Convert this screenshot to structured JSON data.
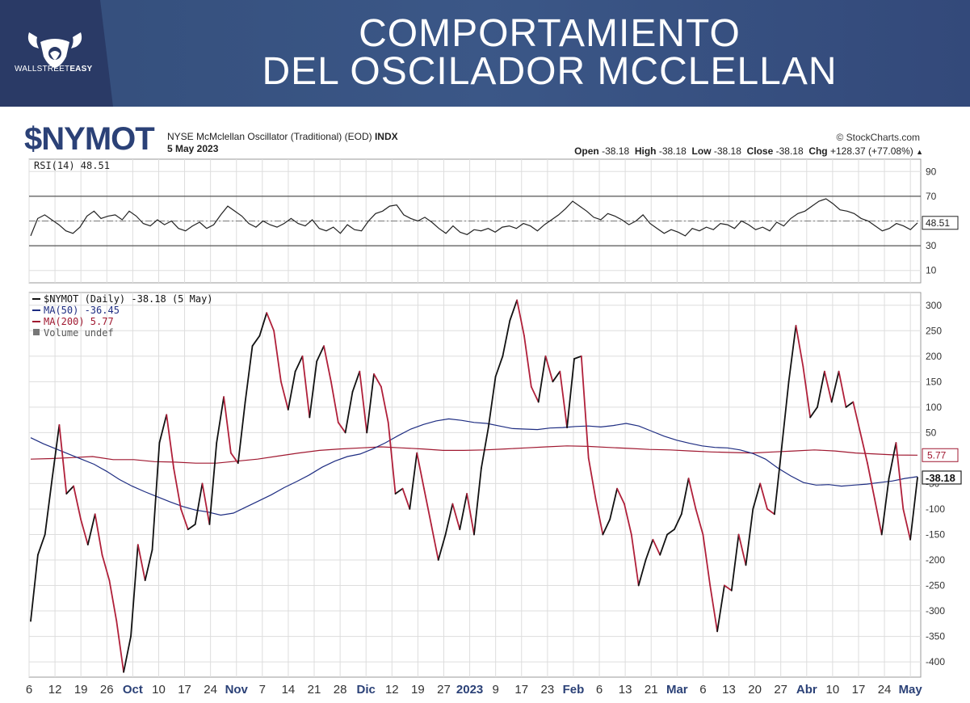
{
  "banner": {
    "logo_text_1": "WALLSTREET",
    "logo_text_2": "EASY",
    "title_line1": "COMPORTAMIENTO",
    "title_line2": "DEL OSCILADOR MCCLELLAN"
  },
  "header": {
    "ticker": "$NYMOT",
    "description": "NYSE McMclellan Oscillator (Traditional) (EOD)",
    "exchange": "INDX",
    "date": "5 May 2023",
    "source": "© StockCharts.com",
    "ohlc": {
      "open_label": "Open",
      "open": "-38.18",
      "high_label": "High",
      "high": "-38.18",
      "low_label": "Low",
      "low": "-38.18",
      "close_label": "Close",
      "close": "-38.18",
      "chg_label": "Chg",
      "chg": "+128.37 (+77.08%)"
    }
  },
  "colors": {
    "price": "#111111",
    "down": "#b0203a",
    "ma50": "#1e2d82",
    "ma200": "#a01830",
    "grid": "#dddddd"
  },
  "chart_data": [
    {
      "type": "line",
      "title": "RSI(14) 48.51",
      "ylim": [
        0,
        100
      ],
      "y_ticks": [
        10,
        30,
        50,
        70,
        90
      ],
      "levels": [
        30,
        70
      ],
      "last_label": "48.51",
      "series": [
        {
          "name": "RSI(14)",
          "values": [
            38,
            52,
            55,
            51,
            47,
            42,
            40,
            45,
            54,
            58,
            52,
            54,
            55,
            51,
            58,
            54,
            48,
            46,
            51,
            47,
            50,
            44,
            42,
            46,
            49,
            44,
            47,
            55,
            62,
            58,
            54,
            48,
            45,
            50,
            47,
            45,
            48,
            52,
            48,
            46,
            51,
            44,
            42,
            45,
            40,
            47,
            43,
            42,
            50,
            56,
            58,
            62,
            63,
            55,
            52,
            50,
            53,
            49,
            44,
            40,
            46,
            41,
            39,
            43,
            42,
            44,
            41,
            45,
            46,
            44,
            48,
            46,
            42,
            47,
            51,
            55,
            60,
            66,
            62,
            58,
            53,
            51,
            56,
            54,
            51,
            47,
            50,
            55,
            48,
            44,
            40,
            43,
            41,
            38,
            44,
            42,
            45,
            43,
            48,
            47,
            44,
            50,
            47,
            43,
            45,
            42,
            49,
            46,
            52,
            56,
            58,
            62,
            66,
            68,
            64,
            59,
            58,
            56,
            52,
            50,
            46,
            42,
            44,
            48,
            46,
            43,
            48.51
          ]
        }
      ]
    },
    {
      "type": "line",
      "legend": [
        {
          "name": "$NYMOT (Daily) -38.18 (5 May)"
        },
        {
          "name": "MA(50) -36.45"
        },
        {
          "name": "MA(200) 5.77"
        },
        {
          "name": "Volume undef"
        }
      ],
      "ylim": [
        -430,
        325
      ],
      "y_ticks": [
        300,
        250,
        200,
        150,
        100,
        50,
        -50,
        -100,
        -150,
        -200,
        -250,
        -300,
        -350,
        -400
      ],
      "x_tick_labels": [
        "6",
        "12",
        "19",
        "26",
        "Oct",
        "10",
        "17",
        "24",
        "Nov",
        "7",
        "14",
        "21",
        "28",
        "Dic",
        "12",
        "19",
        "27",
        "2023",
        "9",
        "17",
        "23",
        "Feb",
        "6",
        "13",
        "21",
        "Mar",
        "6",
        "13",
        "20",
        "27",
        "Abr",
        "10",
        "17",
        "24",
        "May"
      ],
      "last_labels": {
        "ma200": "5.77",
        "price": "-38.18"
      },
      "series": [
        {
          "name": "$NYMOT",
          "values": [
            -320,
            -190,
            -150,
            -40,
            65,
            -70,
            -55,
            -120,
            -170,
            -110,
            -190,
            -240,
            -320,
            -420,
            -350,
            -170,
            -240,
            -180,
            30,
            85,
            -20,
            -100,
            -140,
            -130,
            -50,
            -130,
            30,
            120,
            10,
            -10,
            110,
            220,
            240,
            285,
            250,
            150,
            95,
            170,
            200,
            80,
            190,
            220,
            150,
            70,
            50,
            130,
            170,
            50,
            165,
            140,
            70,
            -70,
            -60,
            -100,
            10,
            -60,
            -130,
            -200,
            -150,
            -90,
            -140,
            -70,
            -150,
            -20,
            60,
            160,
            200,
            270,
            310,
            240,
            140,
            110,
            200,
            150,
            170,
            60,
            195,
            200,
            0,
            -80,
            -150,
            -120,
            -60,
            -90,
            -150,
            -250,
            -200,
            -160,
            -190,
            -150,
            -140,
            -110,
            -40,
            -100,
            -150,
            -250,
            -340,
            -250,
            -260,
            -150,
            -210,
            -100,
            -50,
            -100,
            -110,
            20,
            150,
            260,
            180,
            80,
            100,
            170,
            110,
            170,
            100,
            110,
            50,
            -10,
            -80,
            -150,
            -40,
            30,
            -100,
            -160,
            -38.18
          ]
        },
        {
          "name": "MA(50)",
          "values": [
            40,
            28,
            18,
            8,
            -2,
            -12,
            -26,
            -42,
            -55,
            -66,
            -76,
            -86,
            -95,
            -102,
            -106,
            -112,
            -108,
            -96,
            -84,
            -72,
            -58,
            -46,
            -33,
            -18,
            -6,
            3,
            8,
            18,
            30,
            44,
            57,
            66,
            73,
            77,
            74,
            70,
            68,
            63,
            58,
            57,
            56,
            59,
            60,
            62,
            63,
            61,
            64,
            68,
            63,
            53,
            43,
            35,
            29,
            24,
            21,
            20,
            16,
            9,
            -2,
            -20,
            -35,
            -48,
            -53,
            -52,
            -55,
            -53,
            -51,
            -48,
            -45,
            -40,
            -36.45
          ]
        },
        {
          "name": "MA(200)",
          "values": [
            -2,
            -1,
            1,
            3,
            -3,
            -3,
            -7,
            -8,
            -10,
            -10,
            -6,
            -2,
            4,
            10,
            15,
            18,
            20,
            22,
            20,
            18,
            15,
            15,
            16,
            18,
            20,
            22,
            24,
            23,
            21,
            19,
            17,
            16,
            14,
            12,
            11,
            10,
            12,
            14,
            16,
            14,
            10,
            8,
            6,
            5.77
          ]
        }
      ]
    }
  ]
}
